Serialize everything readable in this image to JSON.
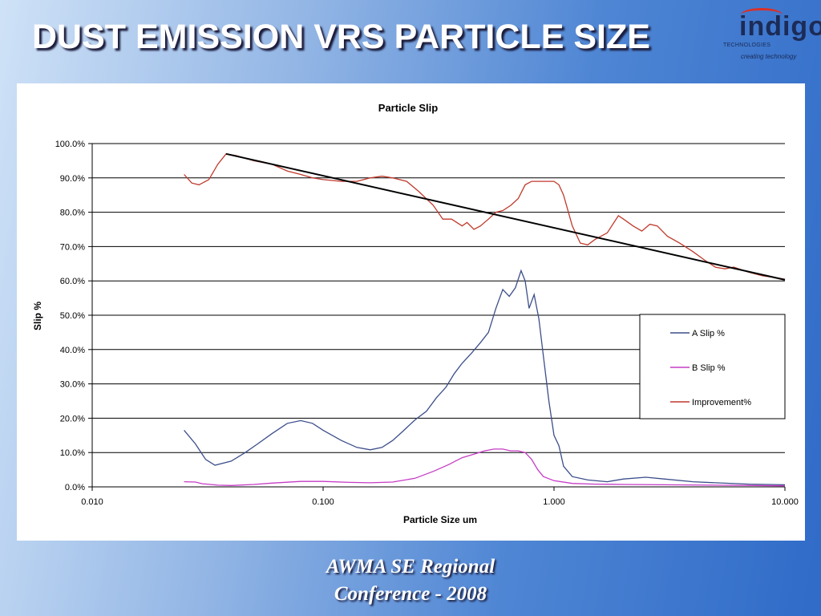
{
  "slide": {
    "title": "DUST EMISSION VRS PARTICLE SIZE",
    "footer_line1": "AWMA SE Regional",
    "footer_line2": "Conference - 2008"
  },
  "logo": {
    "brand": "indigo",
    "subtitle": "TECHNOLOGIES",
    "tagline": "creating technology",
    "brand_color": "#1c2b57",
    "arc_color": "#d9302a"
  },
  "chart_data": {
    "type": "line",
    "title": "Particle Slip",
    "xlabel": "Particle Size um",
    "ylabel": "Slip %",
    "x_scale": "log",
    "xlim": [
      0.01,
      10
    ],
    "ylim": [
      0,
      100
    ],
    "x_ticks": [
      "0.010",
      "0.100",
      "1.000",
      "10.000"
    ],
    "y_ticks": [
      "0.0%",
      "10.0%",
      "20.0%",
      "30.0%",
      "40.0%",
      "50.0%",
      "60.0%",
      "70.0%",
      "80.0%",
      "90.0%",
      "100.0%"
    ],
    "grid": "horizontal",
    "legend_position": "right",
    "series": [
      {
        "name": "A Slip %",
        "color": "#3c4e8a",
        "points": [
          [
            0.025,
            16.5
          ],
          [
            0.028,
            12.5
          ],
          [
            0.031,
            8
          ],
          [
            0.034,
            6.3
          ],
          [
            0.04,
            7.5
          ],
          [
            0.046,
            10
          ],
          [
            0.052,
            12.5
          ],
          [
            0.06,
            15.5
          ],
          [
            0.07,
            18.5
          ],
          [
            0.08,
            19.3
          ],
          [
            0.09,
            18.5
          ],
          [
            0.1,
            16.5
          ],
          [
            0.12,
            13.5
          ],
          [
            0.14,
            11.5
          ],
          [
            0.16,
            10.8
          ],
          [
            0.18,
            11.5
          ],
          [
            0.2,
            13.5
          ],
          [
            0.22,
            16
          ],
          [
            0.25,
            19.5
          ],
          [
            0.28,
            22
          ],
          [
            0.31,
            26
          ],
          [
            0.34,
            29
          ],
          [
            0.37,
            33
          ],
          [
            0.4,
            36
          ],
          [
            0.44,
            39
          ],
          [
            0.48,
            42
          ],
          [
            0.52,
            45
          ],
          [
            0.56,
            52
          ],
          [
            0.6,
            57.5
          ],
          [
            0.64,
            55.5
          ],
          [
            0.68,
            58
          ],
          [
            0.72,
            63
          ],
          [
            0.75,
            60
          ],
          [
            0.78,
            52
          ],
          [
            0.82,
            56
          ],
          [
            0.86,
            49
          ],
          [
            0.9,
            38
          ],
          [
            0.95,
            25
          ],
          [
            1.0,
            15
          ],
          [
            1.05,
            12
          ],
          [
            1.1,
            6
          ],
          [
            1.2,
            3
          ],
          [
            1.4,
            2
          ],
          [
            1.7,
            1.5
          ],
          [
            2.0,
            2.3
          ],
          [
            2.5,
            2.8
          ],
          [
            3.0,
            2.3
          ],
          [
            4.0,
            1.5
          ],
          [
            5.0,
            1.2
          ],
          [
            7.0,
            0.8
          ],
          [
            10.0,
            0.6
          ]
        ]
      },
      {
        "name": "B Slip %",
        "color": "#c63cc6",
        "points": [
          [
            0.025,
            1.5
          ],
          [
            0.028,
            1.4
          ],
          [
            0.03,
            0.9
          ],
          [
            0.035,
            0.5
          ],
          [
            0.04,
            0.4
          ],
          [
            0.05,
            0.7
          ],
          [
            0.06,
            1.1
          ],
          [
            0.08,
            1.6
          ],
          [
            0.1,
            1.6
          ],
          [
            0.13,
            1.3
          ],
          [
            0.16,
            1.2
          ],
          [
            0.2,
            1.4
          ],
          [
            0.25,
            2.5
          ],
          [
            0.3,
            4.5
          ],
          [
            0.35,
            6.5
          ],
          [
            0.4,
            8.5
          ],
          [
            0.45,
            9.5
          ],
          [
            0.5,
            10.5
          ],
          [
            0.55,
            11
          ],
          [
            0.6,
            11
          ],
          [
            0.65,
            10.5
          ],
          [
            0.7,
            10.5
          ],
          [
            0.75,
            10
          ],
          [
            0.8,
            8
          ],
          [
            0.85,
            5
          ],
          [
            0.9,
            3
          ],
          [
            1.0,
            1.8
          ],
          [
            1.2,
            1.0
          ],
          [
            1.5,
            0.8
          ],
          [
            2.0,
            0.7
          ],
          [
            3.0,
            0.6
          ],
          [
            5.0,
            0.5
          ],
          [
            10.0,
            0.3
          ]
        ]
      },
      {
        "name": "Improvement%",
        "color": "#c0392b",
        "points": [
          [
            0.025,
            91
          ],
          [
            0.027,
            88.5
          ],
          [
            0.029,
            88
          ],
          [
            0.032,
            89.5
          ],
          [
            0.035,
            94
          ],
          [
            0.038,
            97
          ],
          [
            0.042,
            96.5
          ],
          [
            0.05,
            95
          ],
          [
            0.06,
            94
          ],
          [
            0.07,
            92
          ],
          [
            0.08,
            91
          ],
          [
            0.09,
            90
          ],
          [
            0.1,
            89.5
          ],
          [
            0.12,
            89
          ],
          [
            0.14,
            89
          ],
          [
            0.16,
            90
          ],
          [
            0.18,
            90.5
          ],
          [
            0.2,
            90
          ],
          [
            0.23,
            89
          ],
          [
            0.26,
            86
          ],
          [
            0.3,
            82
          ],
          [
            0.33,
            78
          ],
          [
            0.36,
            78
          ],
          [
            0.4,
            76
          ],
          [
            0.42,
            77
          ],
          [
            0.45,
            75
          ],
          [
            0.48,
            76
          ],
          [
            0.52,
            78
          ],
          [
            0.56,
            80
          ],
          [
            0.6,
            80.5
          ],
          [
            0.65,
            82
          ],
          [
            0.7,
            84
          ],
          [
            0.75,
            88
          ],
          [
            0.8,
            89
          ],
          [
            0.9,
            89
          ],
          [
            1.0,
            89
          ],
          [
            1.05,
            88
          ],
          [
            1.1,
            85
          ],
          [
            1.2,
            76
          ],
          [
            1.3,
            71
          ],
          [
            1.4,
            70.5
          ],
          [
            1.5,
            72
          ],
          [
            1.7,
            74
          ],
          [
            1.9,
            79
          ],
          [
            2.0,
            78
          ],
          [
            2.2,
            76
          ],
          [
            2.4,
            74.5
          ],
          [
            2.6,
            76.5
          ],
          [
            2.8,
            76
          ],
          [
            3.1,
            73
          ],
          [
            3.5,
            71
          ],
          [
            4.0,
            68.5
          ],
          [
            4.5,
            66
          ],
          [
            5.0,
            64
          ],
          [
            5.5,
            63.5
          ],
          [
            6.0,
            64
          ],
          [
            7.0,
            62.5
          ],
          [
            8.0,
            61.5
          ],
          [
            9.0,
            61
          ],
          [
            10.0,
            60.5
          ]
        ]
      },
      {
        "name": "",
        "color": "#000000",
        "role": "trend",
        "points": [
          [
            0.038,
            97
          ],
          [
            10.0,
            60.3
          ]
        ]
      }
    ]
  }
}
